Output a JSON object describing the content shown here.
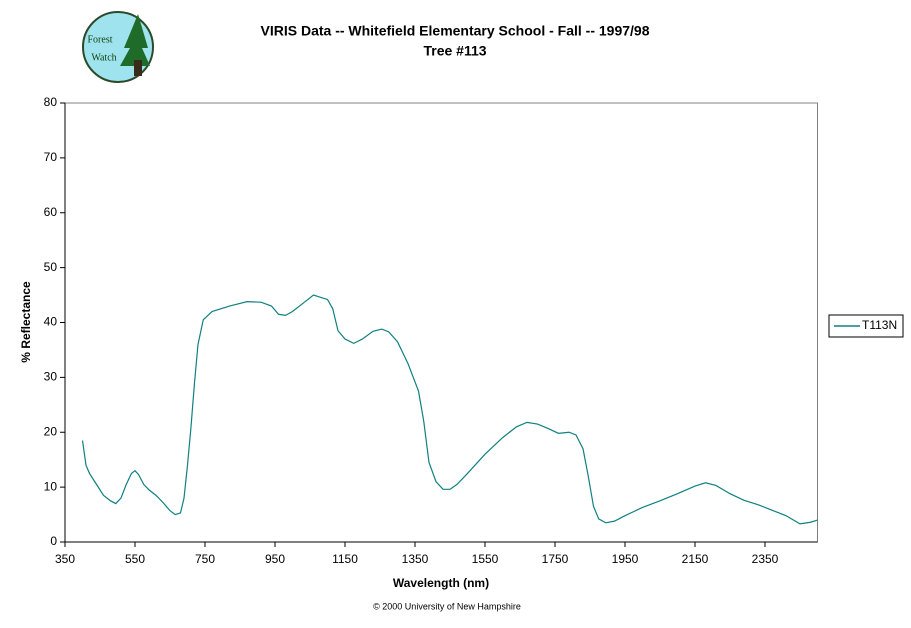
{
  "logo_text": [
    "Forest",
    "Watch"
  ],
  "chart_data": {
    "type": "line",
    "title": "VIRIS Data -- Whitefield Elementary School - Fall -- 1997/98",
    "subtitle": "Tree #113",
    "x_label": "Wavelength (nm)",
    "y_label": "% Reflectance",
    "caption": "© 2000 University of New Hampshire",
    "x": [
      400,
      410,
      420,
      440,
      460,
      480,
      495,
      510,
      525,
      540,
      550,
      560,
      575,
      590,
      610,
      630,
      650,
      665,
      680,
      690,
      700,
      710,
      720,
      730,
      745,
      770,
      820,
      870,
      910,
      940,
      960,
      980,
      1000,
      1030,
      1060,
      1080,
      1100,
      1115,
      1130,
      1150,
      1175,
      1200,
      1230,
      1255,
      1275,
      1300,
      1330,
      1360,
      1375,
      1390,
      1410,
      1430,
      1450,
      1470,
      1500,
      1550,
      1600,
      1640,
      1670,
      1700,
      1730,
      1760,
      1790,
      1810,
      1830,
      1845,
      1860,
      1875,
      1895,
      1920,
      1950,
      2000,
      2050,
      2100,
      2150,
      2180,
      2210,
      2250,
      2290,
      2330,
      2370,
      2410,
      2450,
      2480,
      2500
    ],
    "series": [
      {
        "name": "T113N",
        "color": "#108080",
        "values": [
          18.5,
          14,
          12.5,
          10.5,
          8.5,
          7.5,
          7,
          8,
          10.5,
          12.5,
          13,
          12.3,
          10.5,
          9.5,
          8.5,
          7.2,
          5.7,
          5,
          5.3,
          8,
          14,
          21,
          29,
          36,
          40.5,
          42,
          43,
          43.8,
          43.7,
          43,
          41.5,
          41.3,
          42,
          43.5,
          45,
          44.6,
          44.2,
          42.5,
          38.5,
          37,
          36.2,
          37,
          38.4,
          38.8,
          38.3,
          36.5,
          32.5,
          27.5,
          22,
          14.5,
          11,
          9.6,
          9.6,
          10.5,
          12.5,
          16,
          19,
          21,
          21.8,
          21.5,
          20.7,
          19.8,
          20,
          19.5,
          17,
          12,
          6.5,
          4.2,
          3.5,
          3.8,
          4.8,
          6.3,
          7.5,
          8.8,
          10.2,
          10.8,
          10.3,
          8.8,
          7.6,
          6.8,
          5.8,
          4.8,
          3.3,
          3.6,
          4
        ]
      }
    ],
    "xlim": [
      350,
      2500
    ],
    "xticks": [
      350,
      550,
      750,
      950,
      1150,
      1350,
      1550,
      1750,
      1950,
      2150,
      2350
    ],
    "ylim": [
      0,
      80
    ],
    "yticks": [
      0,
      10,
      20,
      30,
      40,
      50,
      60,
      70,
      80
    ],
    "legend": "right"
  }
}
